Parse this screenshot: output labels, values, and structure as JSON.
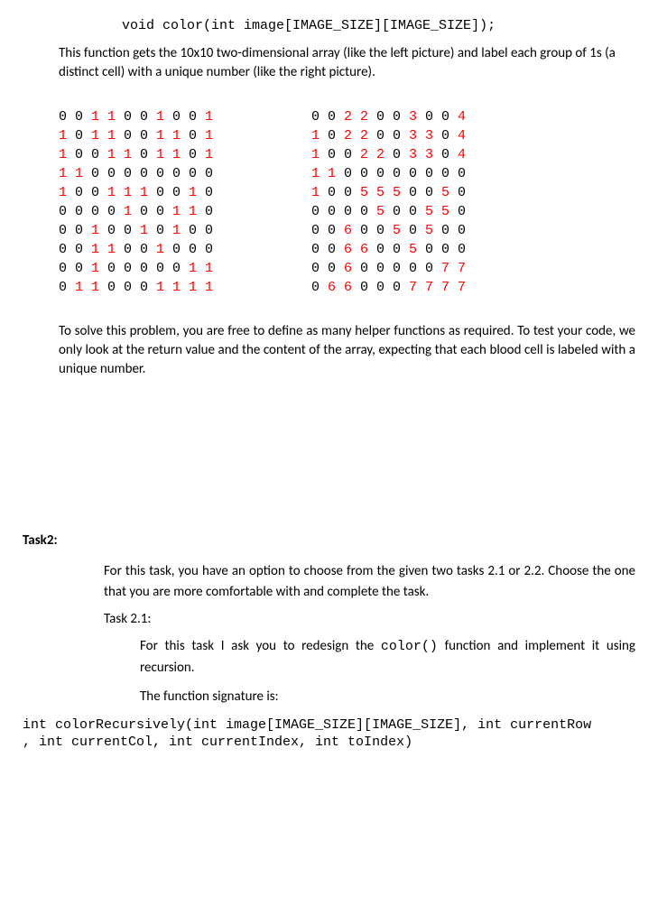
{
  "code_decl": "void color(int image[IMAGE_SIZE][IMAGE_SIZE]);",
  "intro": "This function gets the 10x10 two-dimensional array (like the left picture) and label each group of 1s (a distinct cell) with a unique number (like the right picture).",
  "left_grid": {
    "rows": [
      [
        0,
        0,
        1,
        1,
        0,
        0,
        1,
        0,
        0,
        1
      ],
      [
        1,
        0,
        1,
        1,
        0,
        0,
        1,
        1,
        0,
        1
      ],
      [
        1,
        0,
        0,
        1,
        1,
        0,
        1,
        1,
        0,
        1
      ],
      [
        1,
        1,
        0,
        0,
        0,
        0,
        0,
        0,
        0,
        0
      ],
      [
        1,
        0,
        0,
        1,
        1,
        1,
        0,
        0,
        1,
        0
      ],
      [
        0,
        0,
        0,
        0,
        1,
        0,
        0,
        1,
        1,
        0
      ],
      [
        0,
        0,
        1,
        0,
        0,
        1,
        0,
        1,
        0,
        0
      ],
      [
        0,
        0,
        1,
        1,
        0,
        0,
        1,
        0,
        0,
        0
      ],
      [
        0,
        0,
        1,
        0,
        0,
        0,
        0,
        0,
        1,
        1
      ],
      [
        0,
        1,
        1,
        0,
        0,
        0,
        1,
        1,
        1,
        1
      ]
    ],
    "highlight_color": "#ff0000",
    "font_family": "Courier New",
    "font_size": 15
  },
  "right_grid": {
    "rows": [
      [
        0,
        0,
        2,
        2,
        0,
        0,
        3,
        0,
        0,
        4
      ],
      [
        1,
        0,
        2,
        2,
        0,
        0,
        3,
        3,
        0,
        4
      ],
      [
        1,
        0,
        0,
        2,
        2,
        0,
        3,
        3,
        0,
        4
      ],
      [
        1,
        1,
        0,
        0,
        0,
        0,
        0,
        0,
        0,
        0
      ],
      [
        1,
        0,
        0,
        5,
        5,
        5,
        0,
        0,
        5,
        0
      ],
      [
        0,
        0,
        0,
        0,
        5,
        0,
        0,
        5,
        5,
        0
      ],
      [
        0,
        0,
        6,
        0,
        0,
        5,
        0,
        5,
        0,
        0
      ],
      [
        0,
        0,
        6,
        6,
        0,
        0,
        5,
        0,
        0,
        0
      ],
      [
        0,
        0,
        6,
        0,
        0,
        0,
        0,
        0,
        7,
        7
      ],
      [
        0,
        6,
        6,
        0,
        0,
        0,
        7,
        7,
        7,
        7
      ]
    ],
    "highlight_color": "#ff0000",
    "font_family": "Courier New",
    "font_size": 15
  },
  "mid_para": "To solve this problem, you are free to define as many helper functions as required. To test your code, we only look at the return value and the content of the array, expecting that each blood cell is labeled with a unique number.",
  "task2_label": "Task2:",
  "task2_intro": "For this task, you have an option to choose from the given two tasks 2.1 or 2.2. Choose the one that you are more comfortable with and complete the task.",
  "task21_label": "Task 2.1:",
  "task21_p1a": "For this task I ask you to redesign the ",
  "task21_p1_code": "color()",
  "task21_p1b": " function and implement it using recursion.",
  "task21_p2": "The function signature is:",
  "sig_line1": "int colorRecursively(int image[IMAGE_SIZE][IMAGE_SIZE], int currentRow",
  "sig_line2": ", int currentCol, int currentIndex, int toIndex)",
  "colors": {
    "text": "#000000",
    "highlight": "#ff0000",
    "background": "#ffffff"
  }
}
